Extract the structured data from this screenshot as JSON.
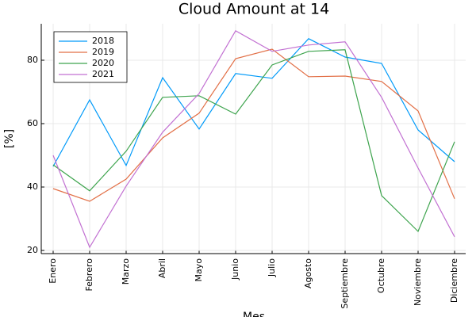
{
  "chart_data": {
    "type": "line",
    "title": "Cloud Amount at 14",
    "x_label": "Mes",
    "y_label": "[%]",
    "categories": [
      "Enero",
      "Febrero",
      "Marzo",
      "Abril",
      "Mayo",
      "Junio",
      "Julio",
      "Agosto",
      "Septiembre",
      "Octubre",
      "Noviembre",
      "Diciembre"
    ],
    "series": [
      {
        "name": "2018",
        "color": "#009af9",
        "values": [
          46.5,
          67.5,
          46.8,
          74.5,
          58.3,
          75.8,
          74.3,
          86.8,
          81,
          79,
          58,
          48
        ]
      },
      {
        "name": "2019",
        "color": "#e26f46",
        "values": [
          39.5,
          35.5,
          42.5,
          55.5,
          63.3,
          80.5,
          83.5,
          74.8,
          75,
          73.3,
          64,
          36.3
        ]
      },
      {
        "name": "2020",
        "color": "#3ea44e",
        "values": [
          47,
          38.8,
          51.3,
          68.3,
          68.8,
          63,
          78.5,
          82.8,
          83.3,
          37.3,
          26,
          54.3
        ]
      },
      {
        "name": "2021",
        "color": "#c271d2",
        "values": [
          50,
          21,
          40.3,
          57.3,
          69.5,
          89.3,
          82.8,
          84.8,
          85.8,
          68.3,
          46,
          24.3
        ]
      }
    ],
    "ylim": [
      19,
      91.5
    ],
    "yticks": [
      20,
      40,
      60,
      80
    ],
    "grid": true,
    "legend": "top-left"
  }
}
